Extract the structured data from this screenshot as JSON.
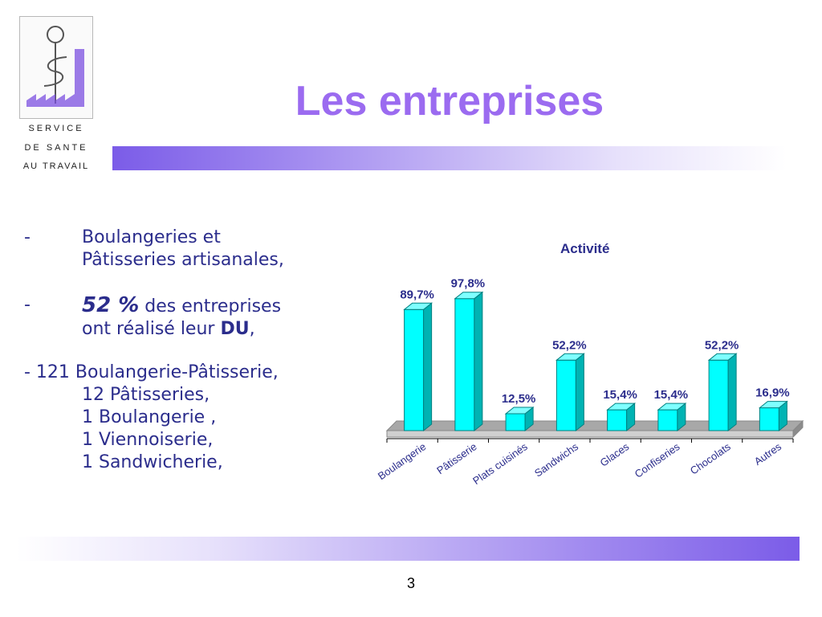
{
  "slide": {
    "title": "Les entreprises",
    "page_number": "3"
  },
  "logo": {
    "line1": "SERVICE",
    "line2": "DE SANTE",
    "line3": "AU TRAVAIL"
  },
  "bullets": {
    "b1_dash": "-",
    "b1_line1": "Boulangeries et",
    "b1_line2": "Pâtisseries artisanales,",
    "b2_dash": "-",
    "b2_percent": "52 %",
    "b2_text1": " des entreprises",
    "b2_text2": "ont réalisé leur ",
    "b2_du": "DU",
    "b2_end": ",",
    "b3_line1": "- 121 Boulangerie-Pâtisserie,",
    "b3_line2": "12 Pâtisseries,",
    "b3_line3": "1 Boulangerie ,",
    "b3_line4": "1 Viennoiserie,",
    "b3_line5": "1 Sandwicherie,"
  },
  "colors": {
    "title": "#9b6bf0",
    "bullet_text": "#2b2d8c",
    "bar_front": "#00ffff",
    "bar_side": "#00b3b3",
    "bar_top": "#7fffff",
    "floor": "#a8a8a8"
  },
  "chart_data": {
    "type": "bar",
    "title": "Activité",
    "categories": [
      "Boulangerie",
      "Pâtisserie",
      "Plats cuisinés",
      "Sandwichs",
      "Glaces",
      "Confiseries",
      "Chocolats",
      "Autres"
    ],
    "values": [
      89.7,
      97.8,
      12.5,
      52.2,
      15.4,
      15.4,
      52.2,
      16.9
    ],
    "value_labels": [
      "89,7%",
      "97,8%",
      "12,5%",
      "52,2%",
      "15,4%",
      "15,4%",
      "52,2%",
      "16,9%"
    ],
    "ylim": [
      0,
      100
    ],
    "grid": false,
    "legend": "none"
  }
}
